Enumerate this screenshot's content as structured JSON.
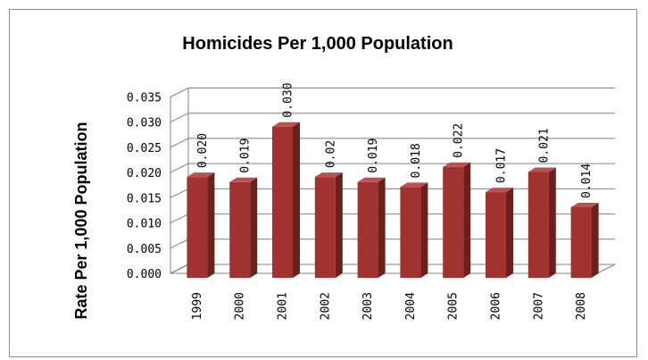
{
  "chart_data": {
    "type": "bar",
    "title": "Homicides Per 1,000 Population",
    "xlabel": "",
    "ylabel": "Rate Per 1,000 Population",
    "categories": [
      "1999",
      "2000",
      "2001",
      "2002",
      "2003",
      "2004",
      "2005",
      "2006",
      "2007",
      "2008"
    ],
    "values": [
      0.02,
      0.019,
      0.03,
      0.02,
      0.019,
      0.018,
      0.022,
      0.017,
      0.021,
      0.014
    ],
    "data_labels": [
      "0.020",
      "0.019",
      "0.030",
      "0.02",
      "0.019",
      "0.018",
      "0.022",
      "0.017",
      "0.021",
      "0.014"
    ],
    "yticks": [
      "0.000",
      "0.005",
      "0.010",
      "0.015",
      "0.020",
      "0.025",
      "0.030",
      "0.035"
    ],
    "ylim": [
      0,
      0.035
    ],
    "grid": true,
    "legend": "none",
    "bar_color": "#a0332f"
  }
}
